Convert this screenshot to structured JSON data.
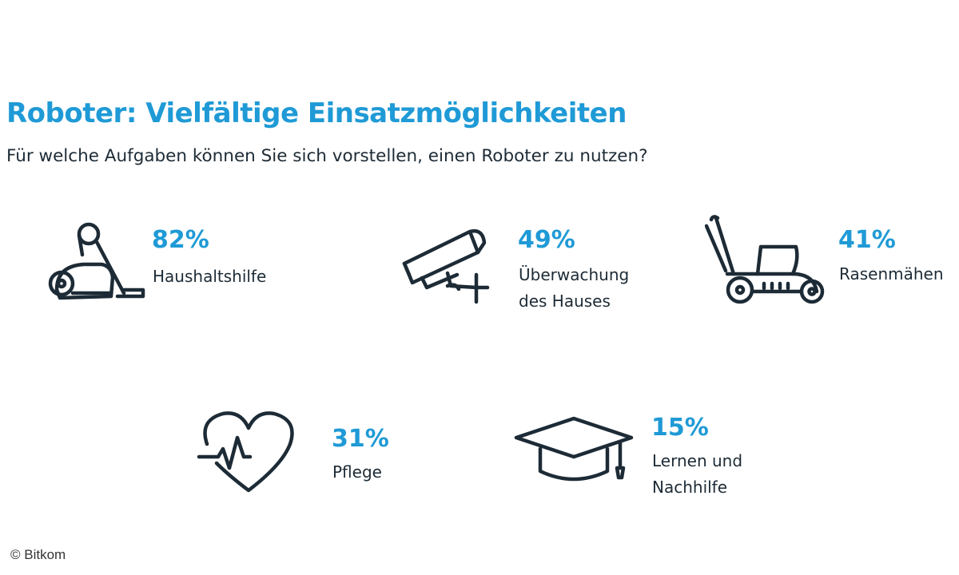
{
  "title": "Roboter: Vielfältige Einsatzmöglichkeiten",
  "subtitle": "Für welche Aufgaben können Sie sich vorstellen, einen Roboter zu nutzen?",
  "colors": {
    "accent": "#1f9ad6",
    "text": "#1d2b36"
  },
  "credit": "© Bitkom",
  "chart_data": {
    "type": "bar",
    "title": "Roboter: Vielfältige Einsatzmöglichkeiten",
    "subtitle": "Für welche Aufgaben können Sie sich vorstellen, einen Roboter zu nutzen?",
    "unit": "%",
    "categories": [
      "Haushaltshilfe",
      "Überwachung des Hauses",
      "Rasenmähen",
      "Pflege",
      "Lernen und Nachhilfe"
    ],
    "values": [
      82,
      49,
      41,
      31,
      15
    ],
    "items": [
      {
        "value": 82,
        "value_label": "82%",
        "label_lines": [
          "Haushaltshilfe"
        ],
        "icon": "vacuum-cleaner-icon"
      },
      {
        "value": 49,
        "value_label": "49%",
        "label_lines": [
          "Überwachung",
          "des Hauses"
        ],
        "icon": "security-camera-icon"
      },
      {
        "value": 41,
        "value_label": "41%",
        "label_lines": [
          "Rasenmähen"
        ],
        "icon": "lawn-mower-icon"
      },
      {
        "value": 31,
        "value_label": "31%",
        "label_lines": [
          "Pflege"
        ],
        "icon": "heartbeat-icon"
      },
      {
        "value": 15,
        "value_label": "15%",
        "label_lines": [
          "Lernen und",
          "Nachhilfe"
        ],
        "icon": "graduation-cap-icon"
      }
    ]
  }
}
